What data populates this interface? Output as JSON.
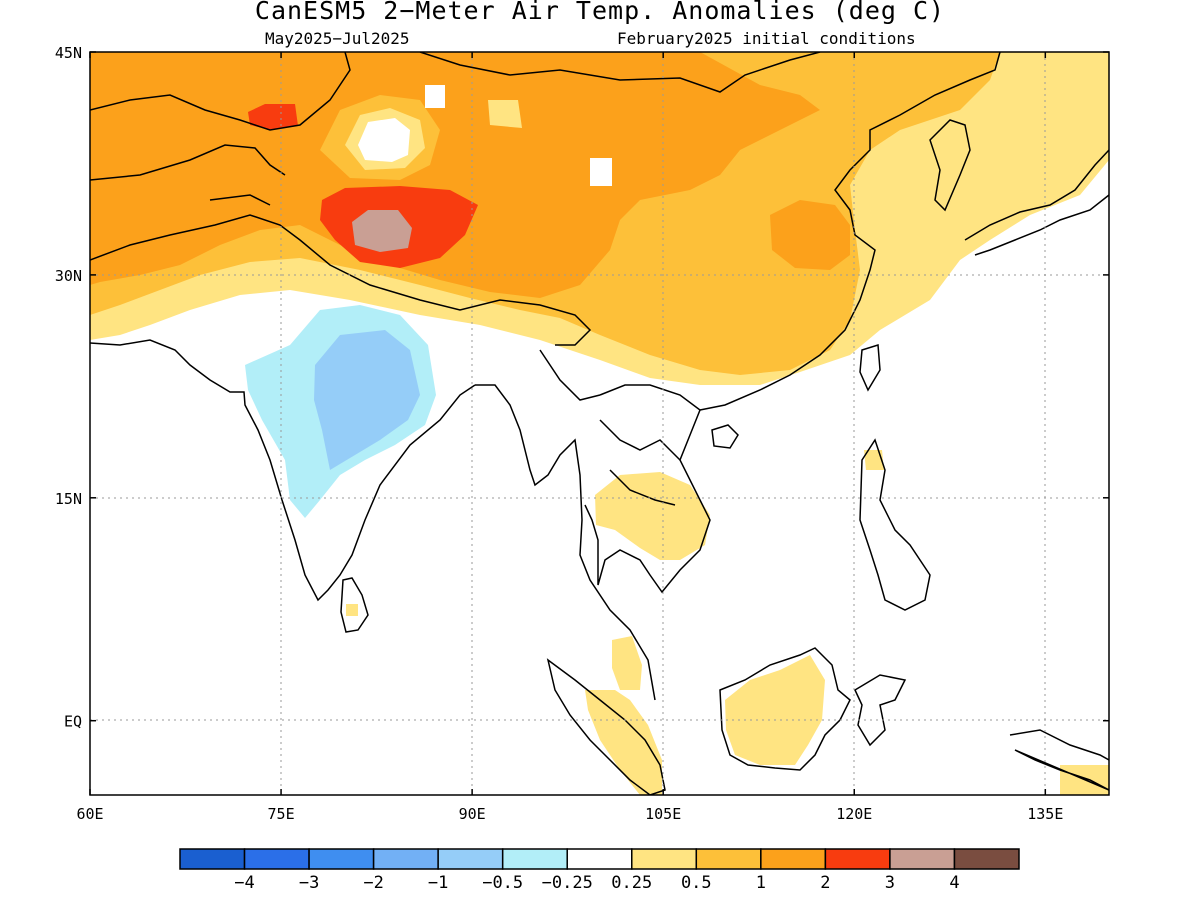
{
  "title": "CanESM5 2−Meter Air Temp. Anomalies (deg C)",
  "subtitle_left": "May2025−Jul2025",
  "subtitle_right": "February2025 initial conditions",
  "map": {
    "lon_range": [
      60,
      140
    ],
    "lat_range": [
      -5,
      45
    ],
    "lon_ticks": [
      {
        "value": 60,
        "label": "60E"
      },
      {
        "value": 75,
        "label": "75E"
      },
      {
        "value": 90,
        "label": "90E"
      },
      {
        "value": 105,
        "label": "105E"
      },
      {
        "value": 120,
        "label": "120E"
      },
      {
        "value": 135,
        "label": "135E"
      }
    ],
    "lat_ticks": [
      {
        "value": 45,
        "label": "45N"
      },
      {
        "value": 30,
        "label": "30N"
      },
      {
        "value": 15,
        "label": "15N"
      },
      {
        "value": 0,
        "label": "EQ"
      }
    ]
  },
  "colorbar": {
    "colors": [
      "#1a5fd0",
      "#2b6fe8",
      "#3f8ef0",
      "#72b0f5",
      "#95cdf8",
      "#b2eef8",
      "#ffffff",
      "#ffe482",
      "#fdc039",
      "#fca11b",
      "#f83c0f",
      "#c99f94",
      "#7a4d40"
    ],
    "labels": [
      "−4",
      "−3",
      "−2",
      "−1",
      "−0.5",
      "−0.25",
      "0.25",
      "0.5",
      "1",
      "2",
      "3",
      "4"
    ]
  },
  "colors": {
    "warm_1": "#ffe482",
    "warm_2": "#fdc039",
    "warm_3": "#fca11b",
    "warm_4": "#f83c0f",
    "warm_5": "#c99f94",
    "cool_1": "#b2eef8",
    "cool_2": "#95cdf8"
  }
}
